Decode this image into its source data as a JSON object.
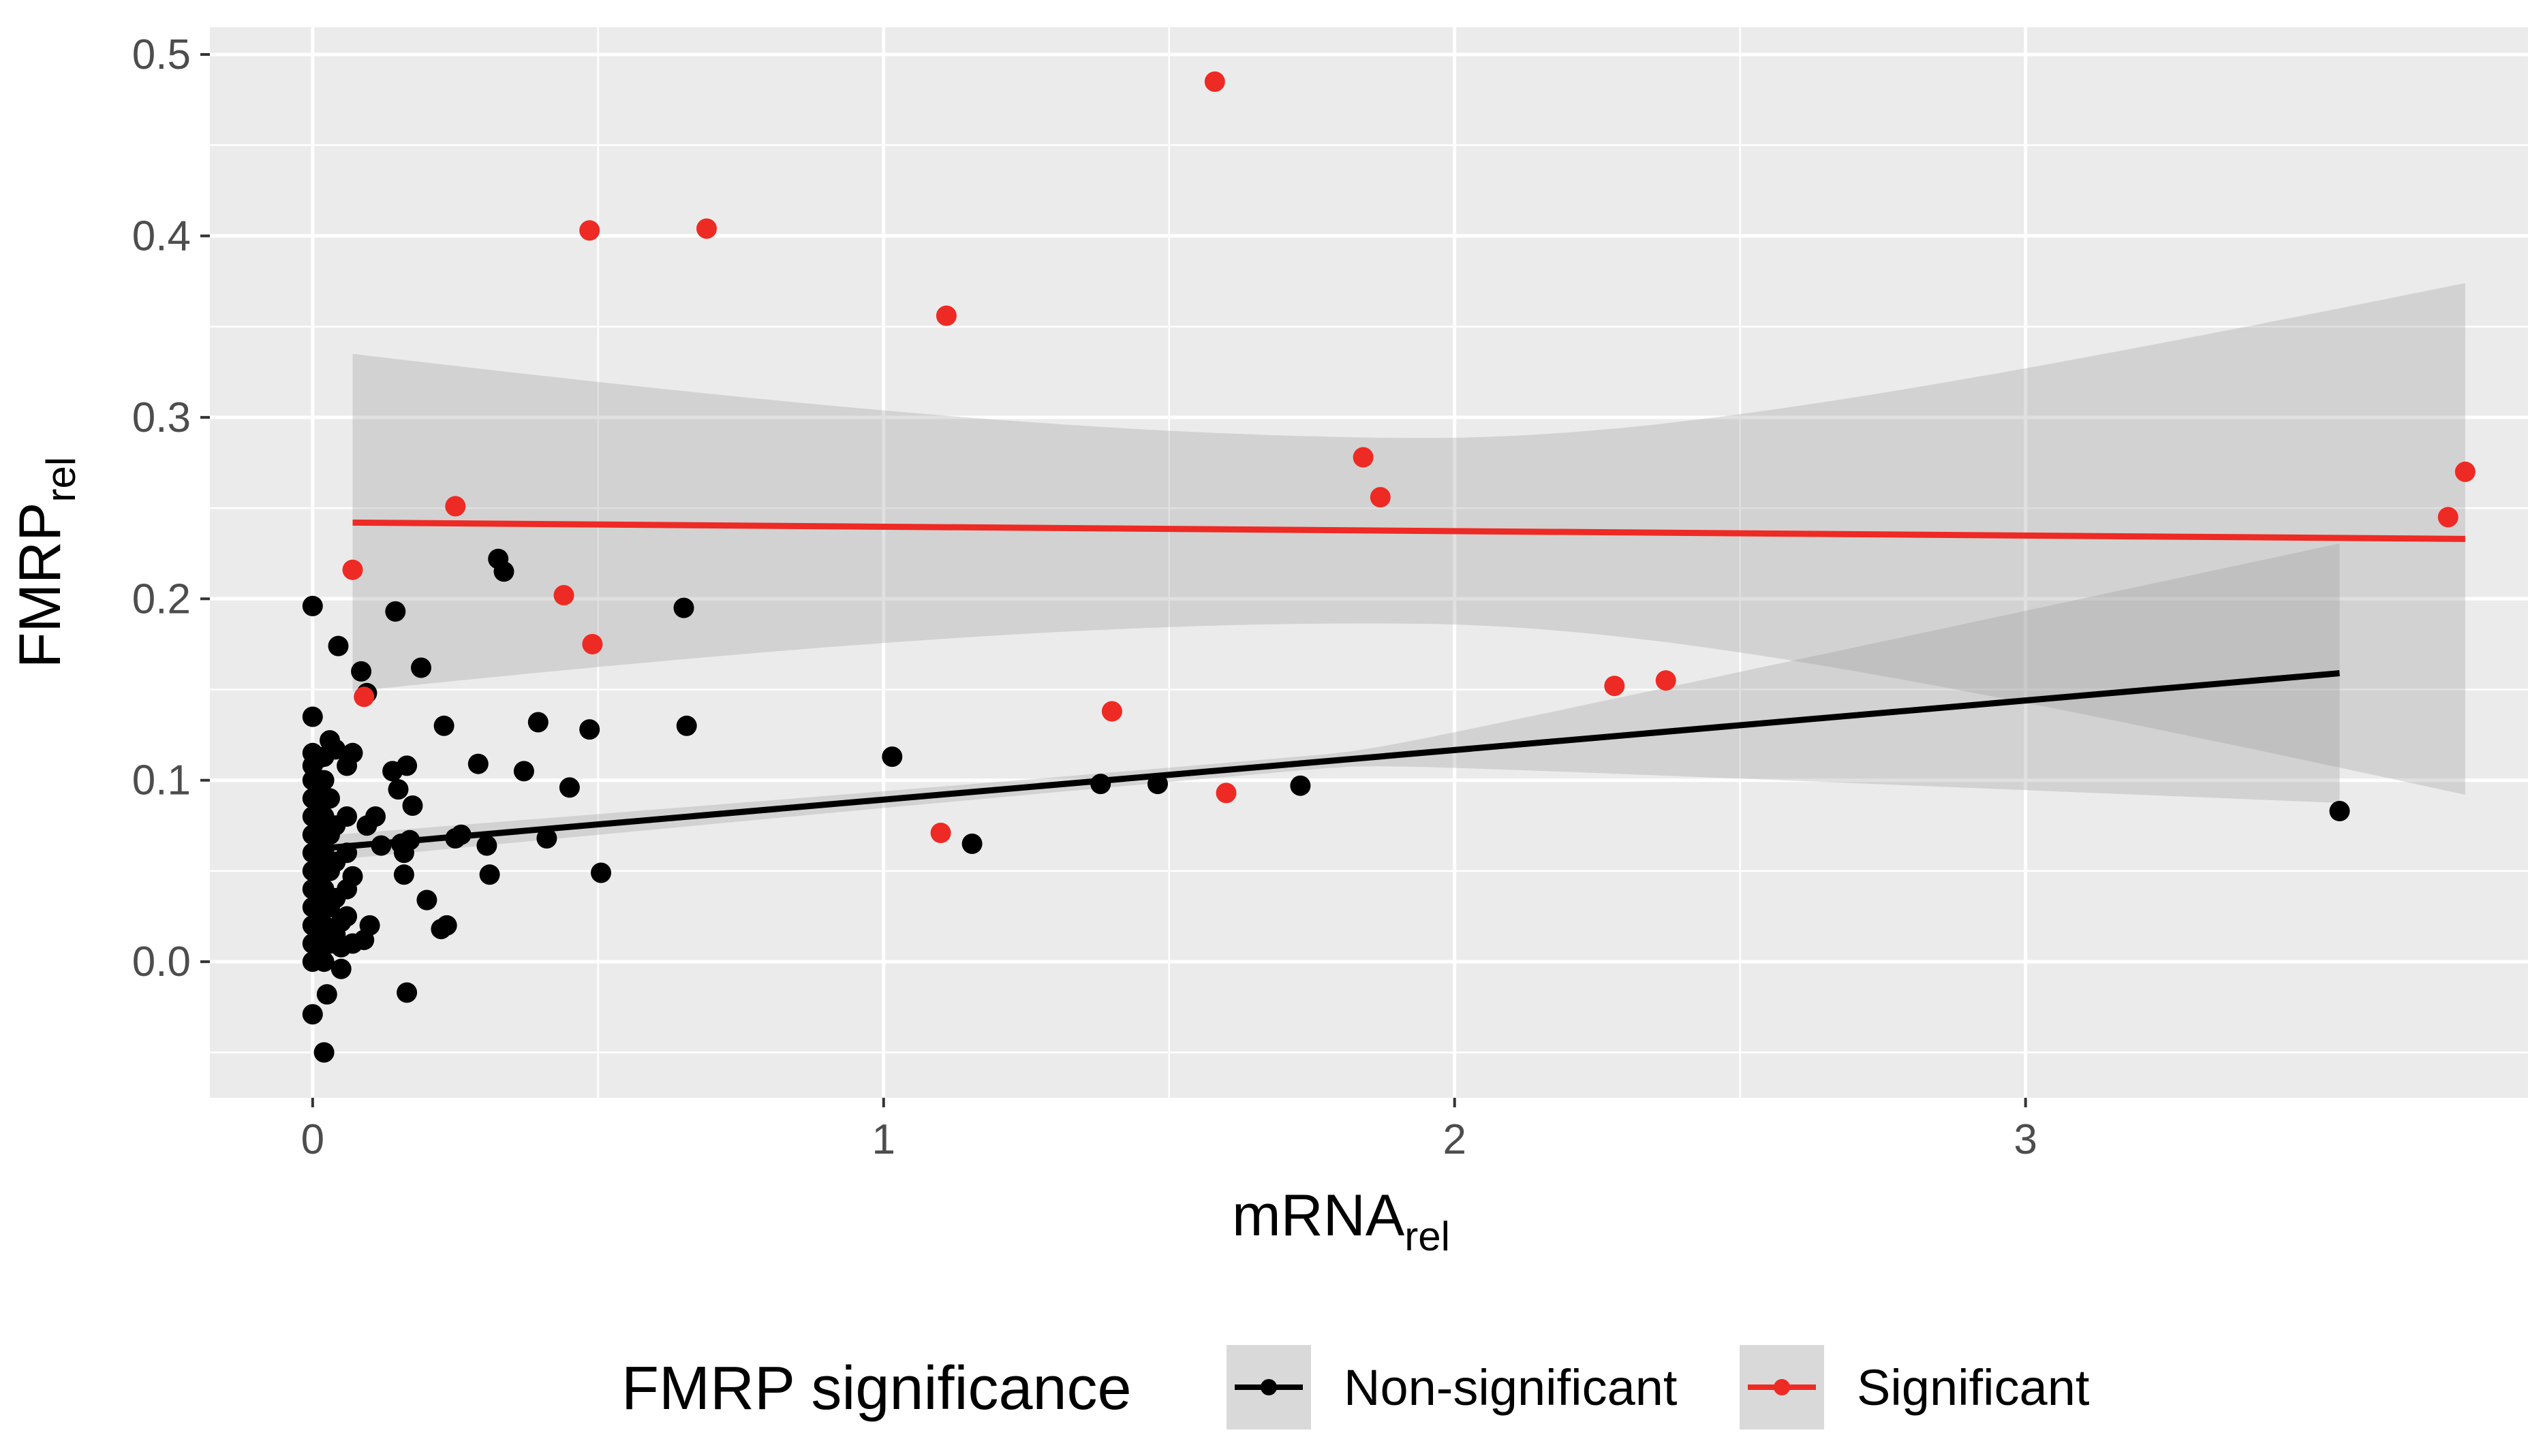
{
  "chart_data": {
    "type": "scatter",
    "xlabel": {
      "main": "mRNA",
      "sub": "rel"
    },
    "ylabel": {
      "main": "FMRP",
      "sub": "rel"
    },
    "xlim": [
      -0.18,
      3.88
    ],
    "ylim": [
      -0.075,
      0.515
    ],
    "x_ticks": [
      0,
      1,
      2,
      3
    ],
    "x_tick_labels": [
      "0",
      "1",
      "2",
      "3"
    ],
    "y_ticks": [
      0.0,
      0.1,
      0.2,
      0.3,
      0.4,
      0.5
    ],
    "y_tick_labels": [
      "0.0",
      "0.1",
      "0.2",
      "0.3",
      "0.4",
      "0.5"
    ],
    "grid": true,
    "legend": {
      "title": "FMRP significance",
      "position": "bottom",
      "items": [
        "Non-significant",
        "Significant"
      ]
    },
    "series": [
      {
        "name": "Non-significant",
        "color": "#000000",
        "fit": {
          "x_range": [
            0.0,
            3.55
          ],
          "y_at": [
            0.062,
            0.159
          ],
          "ci_upper": [
            0.069,
            0.23
          ],
          "ci_lower": [
            0.055,
            0.087
          ]
        },
        "points": [
          [
            0.0,
            0.196
          ],
          [
            0.0,
            0.135
          ],
          [
            0.0,
            0.115
          ],
          [
            0.0,
            0.108
          ],
          [
            0.0,
            0.1
          ],
          [
            0.0,
            0.09
          ],
          [
            0.0,
            0.08
          ],
          [
            0.0,
            0.07
          ],
          [
            0.0,
            0.06
          ],
          [
            0.0,
            0.05
          ],
          [
            0.0,
            0.04
          ],
          [
            0.0,
            0.03
          ],
          [
            0.0,
            0.02
          ],
          [
            0.0,
            0.01
          ],
          [
            0.0,
            0.0
          ],
          [
            0.0,
            -0.029
          ],
          [
            0.01,
            0.112
          ],
          [
            0.01,
            0.095
          ],
          [
            0.01,
            0.085
          ],
          [
            0.01,
            0.075
          ],
          [
            0.01,
            0.065
          ],
          [
            0.01,
            0.055
          ],
          [
            0.01,
            0.045
          ],
          [
            0.01,
            0.035
          ],
          [
            0.01,
            0.025
          ],
          [
            0.01,
            0.015
          ],
          [
            0.01,
            0.005
          ],
          [
            0.02,
            0.113
          ],
          [
            0.02,
            0.1
          ],
          [
            0.02,
            0.08
          ],
          [
            0.02,
            0.06
          ],
          [
            0.02,
            0.04
          ],
          [
            0.02,
            0.02
          ],
          [
            0.02,
            0.0
          ],
          [
            0.02,
            -0.05
          ],
          [
            0.025,
            -0.018
          ],
          [
            0.03,
            0.122
          ],
          [
            0.03,
            0.09
          ],
          [
            0.03,
            0.07
          ],
          [
            0.03,
            0.05
          ],
          [
            0.03,
            0.03
          ],
          [
            0.03,
            0.01
          ],
          [
            0.04,
            0.117
          ],
          [
            0.04,
            0.075
          ],
          [
            0.04,
            0.055
          ],
          [
            0.04,
            0.035
          ],
          [
            0.04,
            0.015
          ],
          [
            0.045,
            0.174
          ],
          [
            0.05,
            -0.004
          ],
          [
            0.05,
            0.008
          ],
          [
            0.05,
            0.022
          ],
          [
            0.06,
            0.108
          ],
          [
            0.06,
            0.08
          ],
          [
            0.06,
            0.06
          ],
          [
            0.06,
            0.04
          ],
          [
            0.06,
            0.025
          ],
          [
            0.07,
            0.115
          ],
          [
            0.07,
            0.047
          ],
          [
            0.07,
            0.01
          ],
          [
            0.085,
            0.16
          ],
          [
            0.09,
            0.012
          ],
          [
            0.095,
            0.148
          ],
          [
            0.095,
            0.075
          ],
          [
            0.1,
            0.02
          ],
          [
            0.11,
            0.08
          ],
          [
            0.12,
            0.064
          ],
          [
            0.14,
            0.105
          ],
          [
            0.145,
            0.193
          ],
          [
            0.15,
            0.095
          ],
          [
            0.155,
            0.065
          ],
          [
            0.16,
            0.06
          ],
          [
            0.16,
            0.048
          ],
          [
            0.165,
            0.108
          ],
          [
            0.165,
            -0.017
          ],
          [
            0.17,
            0.067
          ],
          [
            0.175,
            0.086
          ],
          [
            0.19,
            0.162
          ],
          [
            0.2,
            0.034
          ],
          [
            0.225,
            0.018
          ],
          [
            0.23,
            0.13
          ],
          [
            0.235,
            0.02
          ],
          [
            0.25,
            0.068
          ],
          [
            0.26,
            0.07
          ],
          [
            0.29,
            0.109
          ],
          [
            0.305,
            0.064
          ],
          [
            0.31,
            0.048
          ],
          [
            0.325,
            0.222
          ],
          [
            0.335,
            0.215
          ],
          [
            0.37,
            0.105
          ],
          [
            0.395,
            0.132
          ],
          [
            0.41,
            0.068
          ],
          [
            0.45,
            0.096
          ],
          [
            0.485,
            0.128
          ],
          [
            0.505,
            0.049
          ],
          [
            0.65,
            0.195
          ],
          [
            0.655,
            0.13
          ],
          [
            1.015,
            0.113
          ],
          [
            1.155,
            0.065
          ],
          [
            1.38,
            0.098
          ],
          [
            1.48,
            0.098
          ],
          [
            1.73,
            0.097
          ],
          [
            3.55,
            0.083
          ]
        ]
      },
      {
        "name": "Significant",
        "color": "#ee2a24",
        "fit": {
          "x_range": [
            0.07,
            3.77
          ],
          "y_at": [
            0.242,
            0.233
          ],
          "ci_upper": [
            0.335,
            0.374
          ],
          "ci_lower": [
            0.149,
            0.092
          ]
        },
        "points": [
          [
            0.07,
            0.216
          ],
          [
            0.09,
            0.146
          ],
          [
            0.25,
            0.251
          ],
          [
            0.44,
            0.202
          ],
          [
            0.49,
            0.175
          ],
          [
            0.485,
            0.403
          ],
          [
            0.69,
            0.404
          ],
          [
            1.1,
            0.071
          ],
          [
            1.11,
            0.356
          ],
          [
            1.4,
            0.138
          ],
          [
            1.58,
            0.485
          ],
          [
            1.6,
            0.093
          ],
          [
            1.84,
            0.278
          ],
          [
            1.87,
            0.256
          ],
          [
            2.28,
            0.152
          ],
          [
            2.37,
            0.155
          ],
          [
            3.74,
            0.245
          ],
          [
            3.77,
            0.27
          ]
        ]
      }
    ]
  }
}
